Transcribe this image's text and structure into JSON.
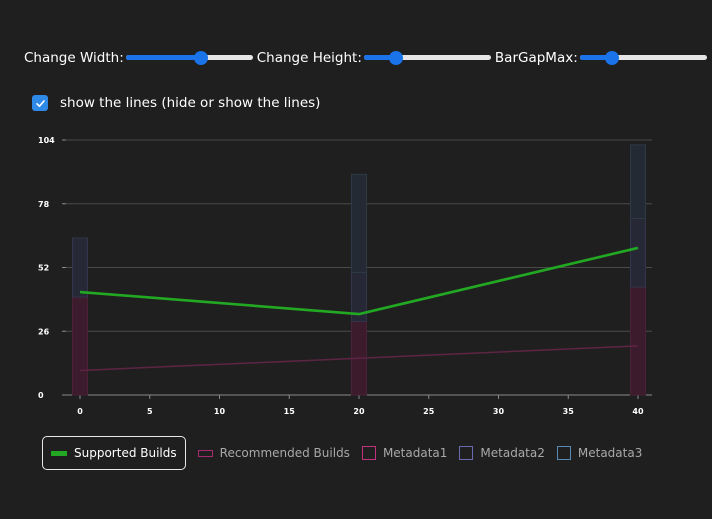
{
  "controls": {
    "width": {
      "label": "Change Width:",
      "value": 0.6
    },
    "height": {
      "label": "Change Height:",
      "value": 0.22
    },
    "bargap": {
      "label": "BarGapMax:",
      "value": 0.22
    }
  },
  "show_lines": {
    "label": "show the lines (hide or show the lines)",
    "checked": true
  },
  "colors": {
    "accent": "#1a73e8",
    "checkbox": "#2e8ae6",
    "supported": "#22a822",
    "recommended": "#a62a6e",
    "metadata1": "#c0327d",
    "metadata2": "#6a6ab0",
    "metadata3": "#5a8ab8"
  },
  "chart_data": {
    "type": "line",
    "x_ticks": [
      0,
      5,
      10,
      15,
      20,
      25,
      30,
      35,
      40
    ],
    "y_ticks": [
      0,
      26,
      52,
      78,
      104
    ],
    "xlim": [
      0,
      40
    ],
    "ylim": [
      0,
      104
    ],
    "series": [
      {
        "name": "Supported Builds",
        "kind": "line",
        "x": [
          0,
          20,
          40
        ],
        "values": [
          42,
          33,
          60
        ]
      },
      {
        "name": "Recommended Builds",
        "kind": "line",
        "x": [
          0,
          20,
          40
        ],
        "values": [
          10,
          15,
          20
        ]
      },
      {
        "name": "Metadata1",
        "kind": "bar",
        "x": [
          0,
          20,
          40
        ],
        "values": [
          40,
          30,
          44
        ]
      },
      {
        "name": "Metadata2",
        "kind": "bar",
        "x": [
          0,
          20,
          40
        ],
        "values": [
          24,
          20,
          28
        ]
      },
      {
        "name": "Metadata3",
        "kind": "bar",
        "x": [
          0,
          20,
          40
        ],
        "values": [
          0,
          40,
          30
        ]
      }
    ],
    "legend": [
      "Supported Builds",
      "Recommended Builds",
      "Metadata1",
      "Metadata2",
      "Metadata3"
    ],
    "legend_active": "Supported Builds"
  }
}
